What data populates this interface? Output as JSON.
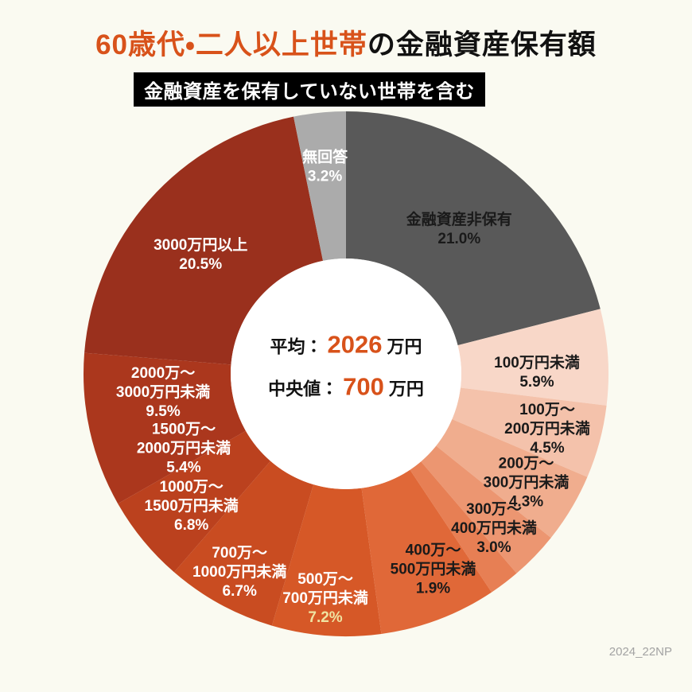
{
  "header": {
    "title_highlight": "60歳代・二人以上世帯",
    "title_rest": "の金融資産保有額",
    "subtitle": "金融資産を保有していない世帯を含む"
  },
  "center": {
    "mean_label": "平均：",
    "mean_value": "2026",
    "mean_unit": "万円",
    "median_label": "中央値：",
    "median_value": "700",
    "median_unit": "万円"
  },
  "footer": {
    "note": "2024_22NP"
  },
  "colors": {
    "accent_orange": "#d8521a",
    "background": "#fafaf1",
    "badge_bg": "#000000",
    "badge_text": "#ffffff",
    "watermark_gray": "#a3a3a3"
  },
  "chart_data": {
    "type": "pie",
    "title": "60歳代・二人以上世帯の金融資産保有額",
    "subtitle": "金融資産を保有していない世帯を含む",
    "unit": "%",
    "legend": "none",
    "start_angle_deg": 0,
    "direction": "clockwise",
    "center_stats": {
      "mean": "平均：2026万円",
      "median": "中央値：700万円"
    },
    "segments": [
      {
        "label": "金融資産非保有",
        "label_lines": [
          "金融資産非保有"
        ],
        "value": 21.0,
        "color": "#595959",
        "text_color": "#1a1a1a"
      },
      {
        "label": "100万円未満",
        "label_lines": [
          "100万円未満"
        ],
        "value": 5.9,
        "color": "#f8d7c8",
        "text_color": "#1a1a1a"
      },
      {
        "label": "100万～200万円未満",
        "label_lines": [
          "100万～",
          "200万円未満"
        ],
        "value": 4.5,
        "color": "#f4c2ab",
        "text_color": "#1a1a1a"
      },
      {
        "label": "200万～300万円未満",
        "label_lines": [
          "200万～",
          "300万円未満"
        ],
        "value": 4.3,
        "color": "#f0ad8e",
        "text_color": "#1a1a1a"
      },
      {
        "label": "300万～400万円未満",
        "label_lines": [
          "300万～",
          "400万円未満"
        ],
        "value": 3.0,
        "color": "#ec9671",
        "text_color": "#1a1a1a"
      },
      {
        "label": "400万～500万円未満",
        "label_lines": [
          "400万～",
          "500万円未満"
        ],
        "value": 1.9,
        "color": "#e77f54",
        "text_color": "#1a1a1a"
      },
      {
        "label": "500万～700万円未満",
        "label_lines": [
          "500万～",
          "700万円未満"
        ],
        "value": 7.2,
        "color": "#e06838",
        "text_color": "#ffffff",
        "pct_color": "#efe3a1"
      },
      {
        "label": "700万～1000万円未満",
        "label_lines": [
          "700万～",
          "1000万円未満"
        ],
        "value": 6.7,
        "color": "#d65827",
        "text_color": "#ffffff"
      },
      {
        "label": "1000万～1500万円未満",
        "label_lines": [
          "1000万～",
          "1500万円未満"
        ],
        "value": 6.8,
        "color": "#c94c21",
        "text_color": "#ffffff"
      },
      {
        "label": "1500万～2000万円未満",
        "label_lines": [
          "1500万～",
          "2000万円未満"
        ],
        "value": 5.4,
        "color": "#bb411e",
        "text_color": "#ffffff"
      },
      {
        "label": "2000万～3000万円未満",
        "label_lines": [
          "2000万～",
          "3000万円未満"
        ],
        "value": 9.5,
        "color": "#ab371d",
        "text_color": "#ffffff"
      },
      {
        "label": "3000万円以上",
        "label_lines": [
          "3000万円以上"
        ],
        "value": 20.5,
        "color": "#9a301d",
        "text_color": "#ffffff"
      },
      {
        "label": "無回答",
        "label_lines": [
          "無回答"
        ],
        "value": 3.2,
        "color": "#ababab",
        "text_color": "#ffffff"
      }
    ]
  }
}
